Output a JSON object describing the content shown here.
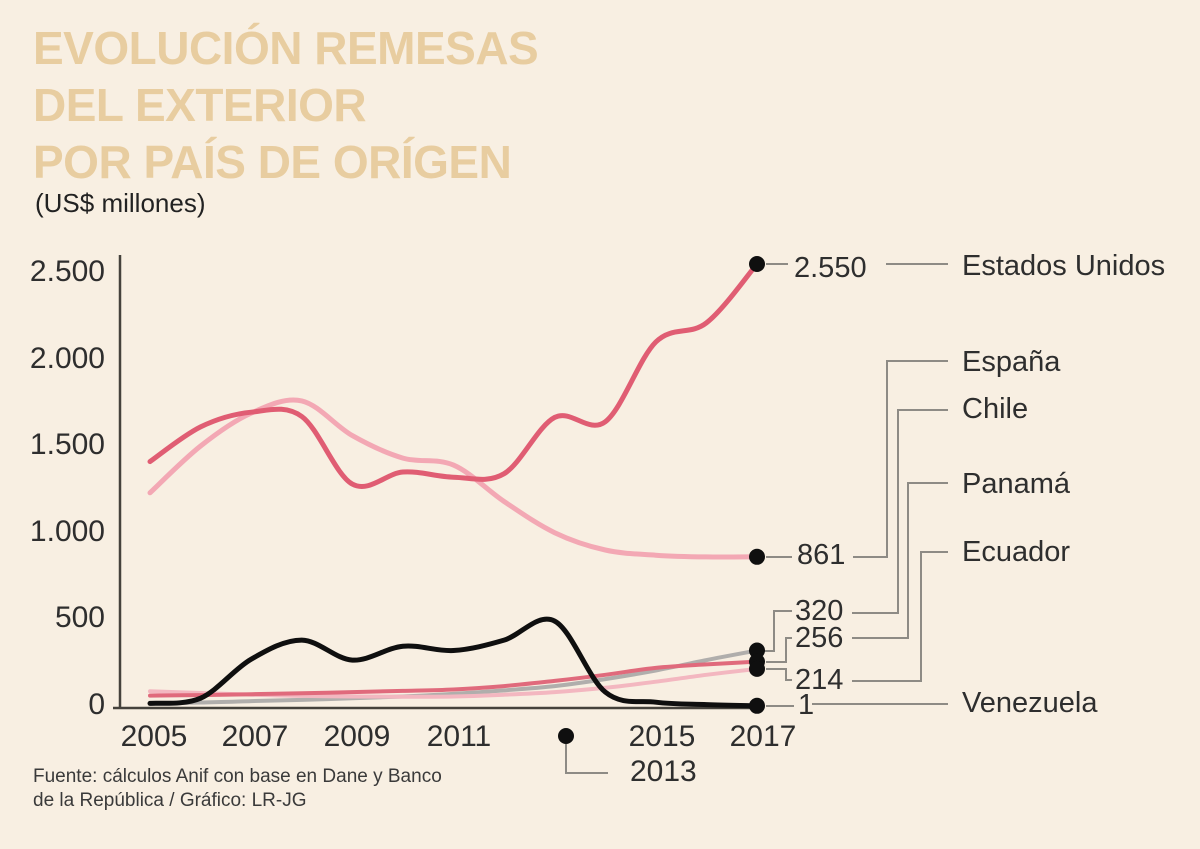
{
  "header": {
    "title_lines": [
      "EVOLUCIÓN REMESAS",
      "DEL EXTERIOR",
      "POR PAÍS DE ORÍGEN"
    ],
    "subtitle": "(US$ millones)",
    "title_color": "#e8cda0"
  },
  "chart_data": {
    "type": "line",
    "title": "Evolución remesas del exterior por país de orígen",
    "unit": "US$ millones",
    "x": [
      2005,
      2006,
      2007,
      2008,
      2009,
      2010,
      2011,
      2012,
      2013,
      2014,
      2015,
      2016,
      2017
    ],
    "series": [
      {
        "name": "Estados Unidos",
        "color": "#e05d73",
        "width": 5,
        "z": 4,
        "end_label": "2.550",
        "values": [
          1410,
          1610,
          1695,
          1670,
          1280,
          1350,
          1320,
          1340,
          1665,
          1640,
          2100,
          2210,
          2550
        ]
      },
      {
        "name": "España",
        "color": "#f3a8b4",
        "width": 5,
        "z": 3,
        "end_label": "861",
        "values": [
          1230,
          1500,
          1690,
          1760,
          1560,
          1430,
          1390,
          1180,
          1000,
          900,
          870,
          860,
          861
        ]
      },
      {
        "name": "Chile",
        "color": "#b0aeac",
        "width": 4,
        "z": 0,
        "end_label": "320",
        "values": [
          15,
          20,
          28,
          35,
          45,
          55,
          70,
          90,
          115,
          155,
          205,
          265,
          320
        ]
      },
      {
        "name": "Panamá",
        "color": "#e06a7c",
        "width": 4,
        "z": 2,
        "end_label": "256",
        "values": [
          60,
          63,
          68,
          73,
          80,
          87,
          95,
          115,
          145,
          180,
          220,
          240,
          256
        ]
      },
      {
        "name": "Ecuador",
        "color": "#f3b7c0",
        "width": 4,
        "z": 1,
        "end_label": "214",
        "values": [
          85,
          75,
          65,
          58,
          55,
          53,
          55,
          65,
          80,
          105,
          140,
          180,
          214
        ]
      },
      {
        "name": "Venezuela",
        "color": "#0f0f0f",
        "width": 5,
        "z": 5,
        "end_label": "1",
        "values": [
          15,
          45,
          270,
          380,
          265,
          345,
          320,
          380,
          490,
          80,
          22,
          8,
          1
        ]
      }
    ],
    "y_ticks": [
      "2.500",
      "2.000",
      "1.500",
      "1.000",
      "500",
      "0"
    ],
    "x_ticks": [
      "2005",
      "2007",
      "2009",
      "2011",
      "2015",
      "2017"
    ],
    "callout_year": "2013",
    "ylim": [
      0,
      2550
    ],
    "xlim": [
      2005,
      2017
    ],
    "grid": false,
    "legend_position": "right-annotations"
  },
  "footer": {
    "lines": [
      "Fuente: cálculos Anif con base en Dane y Banco",
      "de la República / Gráfico: LR-JG"
    ]
  }
}
